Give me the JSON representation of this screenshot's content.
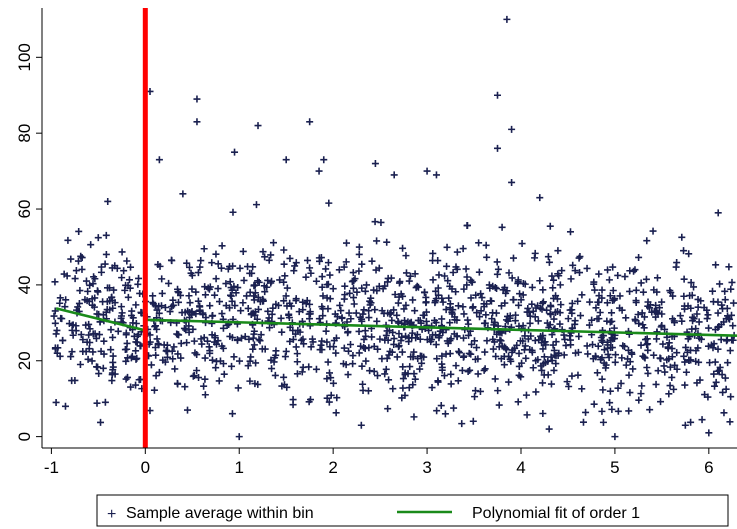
{
  "chart_data": {
    "type": "scatter",
    "xlim": [
      -1.1,
      6.3
    ],
    "ylim": [
      -3,
      113
    ],
    "xticks": [
      -1,
      0,
      1,
      2,
      3,
      4,
      5,
      6
    ],
    "yticks": [
      0,
      20,
      40,
      60,
      80,
      100
    ],
    "xtick_labels": [
      "-1",
      "0",
      "1",
      "2",
      "3",
      "4",
      "5",
      "6"
    ],
    "ytick_labels": [
      "0",
      "20",
      "40",
      "60",
      "80",
      "100"
    ],
    "grid": false,
    "legend_position": "bottom",
    "cutoff_x": 0,
    "series": [
      {
        "name": "Sample average within bin",
        "marker": "plus",
        "color": "#1a2050",
        "n_points": 1500,
        "outliers": [
          [
            0.05,
            91
          ],
          [
            0.55,
            89
          ],
          [
            0.55,
            83
          ],
          [
            0.15,
            73
          ],
          [
            0.95,
            75
          ],
          [
            1.2,
            82
          ],
          [
            1.5,
            73
          ],
          [
            1.75,
            83
          ],
          [
            1.9,
            73
          ],
          [
            1.85,
            70
          ],
          [
            2.45,
            72
          ],
          [
            2.65,
            69
          ],
          [
            3.0,
            70
          ],
          [
            3.1,
            69
          ],
          [
            3.75,
            90
          ],
          [
            3.75,
            76
          ],
          [
            3.85,
            110
          ],
          [
            3.9,
            81
          ],
          [
            3.9,
            67
          ],
          [
            4.2,
            63
          ],
          [
            1.0,
            0
          ],
          [
            2.3,
            3
          ],
          [
            4.3,
            2
          ],
          [
            5.0,
            0
          ],
          [
            6.0,
            1
          ],
          [
            5.75,
            3
          ],
          [
            -0.85,
            8
          ],
          [
            -0.95,
            9
          ],
          [
            6.1,
            59
          ],
          [
            -0.4,
            62
          ],
          [
            0.4,
            64
          ]
        ]
      },
      {
        "name": "Polynomial fit of order 1",
        "color": "#1a8a1a",
        "left_segment": [
          [
            -0.95,
            33.8
          ],
          [
            0,
            28.0
          ]
        ],
        "right_segment": [
          [
            0,
            30.8
          ],
          [
            6.3,
            26.6
          ]
        ]
      }
    ],
    "cutoff_line_color": "#ff0000"
  },
  "legend": {
    "items": [
      {
        "label": "Sample average within bin",
        "symbol": "+"
      },
      {
        "label": "Polynomial fit of order 1"
      }
    ]
  }
}
